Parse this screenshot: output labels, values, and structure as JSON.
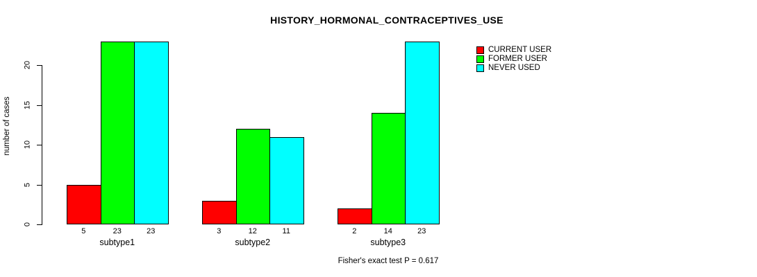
{
  "chart_data": {
    "type": "bar",
    "title": "HISTORY_HORMONAL_CONTRACEPTIVES_USE",
    "ylabel": "number of cases",
    "xlabel": "",
    "annotation": "Fisher's exact test P = 0.617",
    "categories": [
      "subtype1",
      "subtype2",
      "subtype3"
    ],
    "series": [
      {
        "name": "CURRENT USER",
        "color": "#FF0000",
        "values": [
          5,
          3,
          2
        ]
      },
      {
        "name": "FORMER USER",
        "color": "#00FF00",
        "values": [
          23,
          12,
          14
        ]
      },
      {
        "name": "NEVER USED",
        "color": "#00FFFF",
        "values": [
          23,
          11,
          23
        ]
      }
    ],
    "yticks": [
      0,
      5,
      10,
      15,
      20
    ],
    "ylim": [
      0,
      23.4
    ],
    "grid": false,
    "legend_position": "right",
    "bar_labels_shown": true,
    "background": "#FFFFFF",
    "text_color": "#000000"
  }
}
